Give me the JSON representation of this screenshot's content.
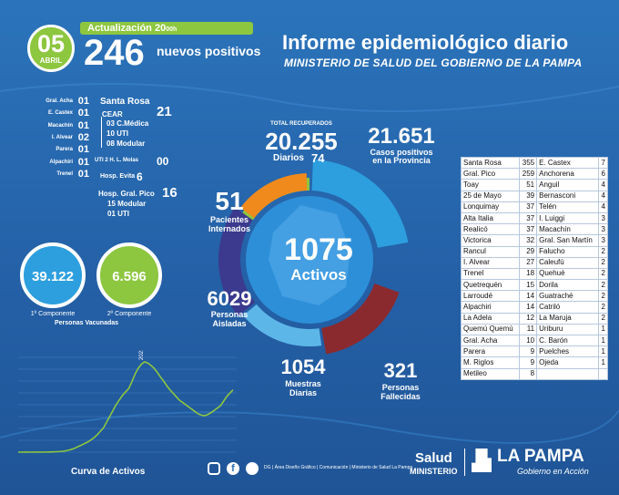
{
  "header": {
    "day": "05",
    "month": "ABRIL",
    "update_label": "Actualización 20",
    "update_suffix": "00h",
    "new_positive_count": "246",
    "new_positive_label": "nuevos positivos",
    "title": "Informe epidemiológico diario",
    "subtitle": "MINISTERIO DE SALUD DEL GOBIERNO DE LA PAMPA"
  },
  "left_list": [
    {
      "name": "Gral. Acha",
      "value": "01"
    },
    {
      "name": "E. Castex",
      "value": "01"
    },
    {
      "name": "Macachín",
      "value": "01"
    },
    {
      "name": "I. Alvear",
      "value": "02"
    },
    {
      "name": "Parera",
      "value": "01"
    },
    {
      "name": "Alpachiri",
      "value": "01"
    },
    {
      "name": "Trenel",
      "value": "01"
    }
  ],
  "santa_rosa": {
    "label": "Santa Rosa",
    "cear": "CEAR",
    "cear_total": "21",
    "c_medica": "03 C.Médica",
    "uti": "10 UTI",
    "modular": "08 Modular",
    "molas_label": "UTI 2 H. L. Molas",
    "molas_value": "00",
    "evita_label": "Hosp. Evita",
    "evita_value": "6",
    "pico_label": "Hosp. Gral. Pico",
    "pico_value": "16",
    "pico_modular": "15 Modular",
    "pico_uti": "01 UTI"
  },
  "donut": {
    "center_value": "1075",
    "center_label": "Activos",
    "recuperados_label": "TOTAL RECUPERADOS",
    "recuperados_value": "20.255",
    "diarios_label": "Diarios",
    "diarios_value": "74",
    "casos_value": "21.651",
    "casos_label_1": "Casos positivos",
    "casos_label_2": "en la Provincia",
    "internados_value": "51",
    "internados_label_1": "Pacientes",
    "internados_label_2": "Internados",
    "aisladas_value": "6029",
    "aisladas_label_1": "Personas",
    "aisladas_label_2": "Aisladas",
    "muestras_value": "1054",
    "muestras_label_1": "Muestras",
    "muestras_label_2": "Diarias",
    "fallecidos_value": "321",
    "fallecidos_label_1": "Personas",
    "fallecidos_label_2": "Fallecidas",
    "colors": {
      "recuperados": "#8dc63f",
      "casos": "#2d9fdf",
      "fallecidos": "#8b2a2e",
      "muestras": "#5db6e8",
      "aisladas": "#3b3a8e",
      "internados": "#f08a1c",
      "center": "#2d8fd8"
    }
  },
  "table_left": [
    [
      "Santa Rosa",
      "355"
    ],
    [
      "Gral. Pico",
      "259"
    ],
    [
      "Toay",
      "51"
    ],
    [
      "25 de Mayo",
      "39"
    ],
    [
      "Lonquimay",
      "37"
    ],
    [
      "Alta Italia",
      "37"
    ],
    [
      "Realicó",
      "37"
    ],
    [
      "Victorica",
      "32"
    ],
    [
      "Rancul",
      "29"
    ],
    [
      "I. Alvear",
      "27"
    ],
    [
      "Trenel",
      "18"
    ],
    [
      "Quetrequén",
      "15"
    ],
    [
      "Larroudé",
      "14"
    ],
    [
      "Alpachiri",
      "14"
    ],
    [
      "La Adela",
      "12"
    ],
    [
      "Quemú Quemú",
      "11"
    ],
    [
      "Gral. Acha",
      "10"
    ],
    [
      "Parera",
      "9"
    ],
    [
      "M. Riglos",
      "9"
    ],
    [
      "Metileo",
      "8"
    ]
  ],
  "table_right": [
    [
      "E. Castex",
      "7"
    ],
    [
      "Anchorena",
      "6"
    ],
    [
      "Anguil",
      "4"
    ],
    [
      "Bernasconi",
      "4"
    ],
    [
      "Telén",
      "4"
    ],
    [
      "I. Luiggi",
      "3"
    ],
    [
      "Macachín",
      "3"
    ],
    [
      "Gral. San Martín",
      "3"
    ],
    [
      "Falucho",
      "2"
    ],
    [
      "Caleufú",
      "2"
    ],
    [
      "Quehué",
      "2"
    ],
    [
      "Dorila",
      "2"
    ],
    [
      "Guatraché",
      "2"
    ],
    [
      "Catriló",
      "2"
    ],
    [
      "La Maruja",
      "2"
    ],
    [
      "Uriburu",
      "1"
    ],
    [
      "C. Barón",
      "1"
    ],
    [
      "Puelches",
      "1"
    ],
    [
      "Ojeda",
      "1"
    ]
  ],
  "vaccination": {
    "first_value": "39.122",
    "first_label": "1º Componente",
    "second_value": "6.596",
    "second_label": "2º Componente",
    "caption": "Personas Vacunadas"
  },
  "chart_data": {
    "type": "line",
    "title": "Curva de Activos",
    "annotation": "2021",
    "series": [
      {
        "values": [
          0,
          0,
          1,
          1,
          0,
          2,
          1,
          0,
          2,
          2,
          3,
          5,
          8,
          10,
          14,
          22,
          35,
          50,
          70,
          98,
          120,
          150,
          175,
          210,
          250,
          300,
          360,
          420,
          520,
          620,
          720,
          820,
          900,
          980,
          1040,
          1100,
          1220,
          1350,
          1450,
          1520,
          1560,
          1540,
          1500,
          1450,
          1380,
          1300,
          1230,
          1150,
          1080,
          1020,
          960,
          900,
          860,
          820,
          780,
          740,
          700,
          660,
          640,
          630,
          650,
          680,
          720,
          760,
          800,
          880,
          960,
          1020,
          1075
        ]
      }
    ]
  },
  "footer": {
    "credits": "DG | Área Diseño Gráfico | Comunicación | Ministerio de Salud La Pampa",
    "salud": "Salud",
    "ministerio": "MINISTERIO",
    "la_pampa": "LA PAMPA",
    "gobierno": "Gobierno en Acción"
  }
}
